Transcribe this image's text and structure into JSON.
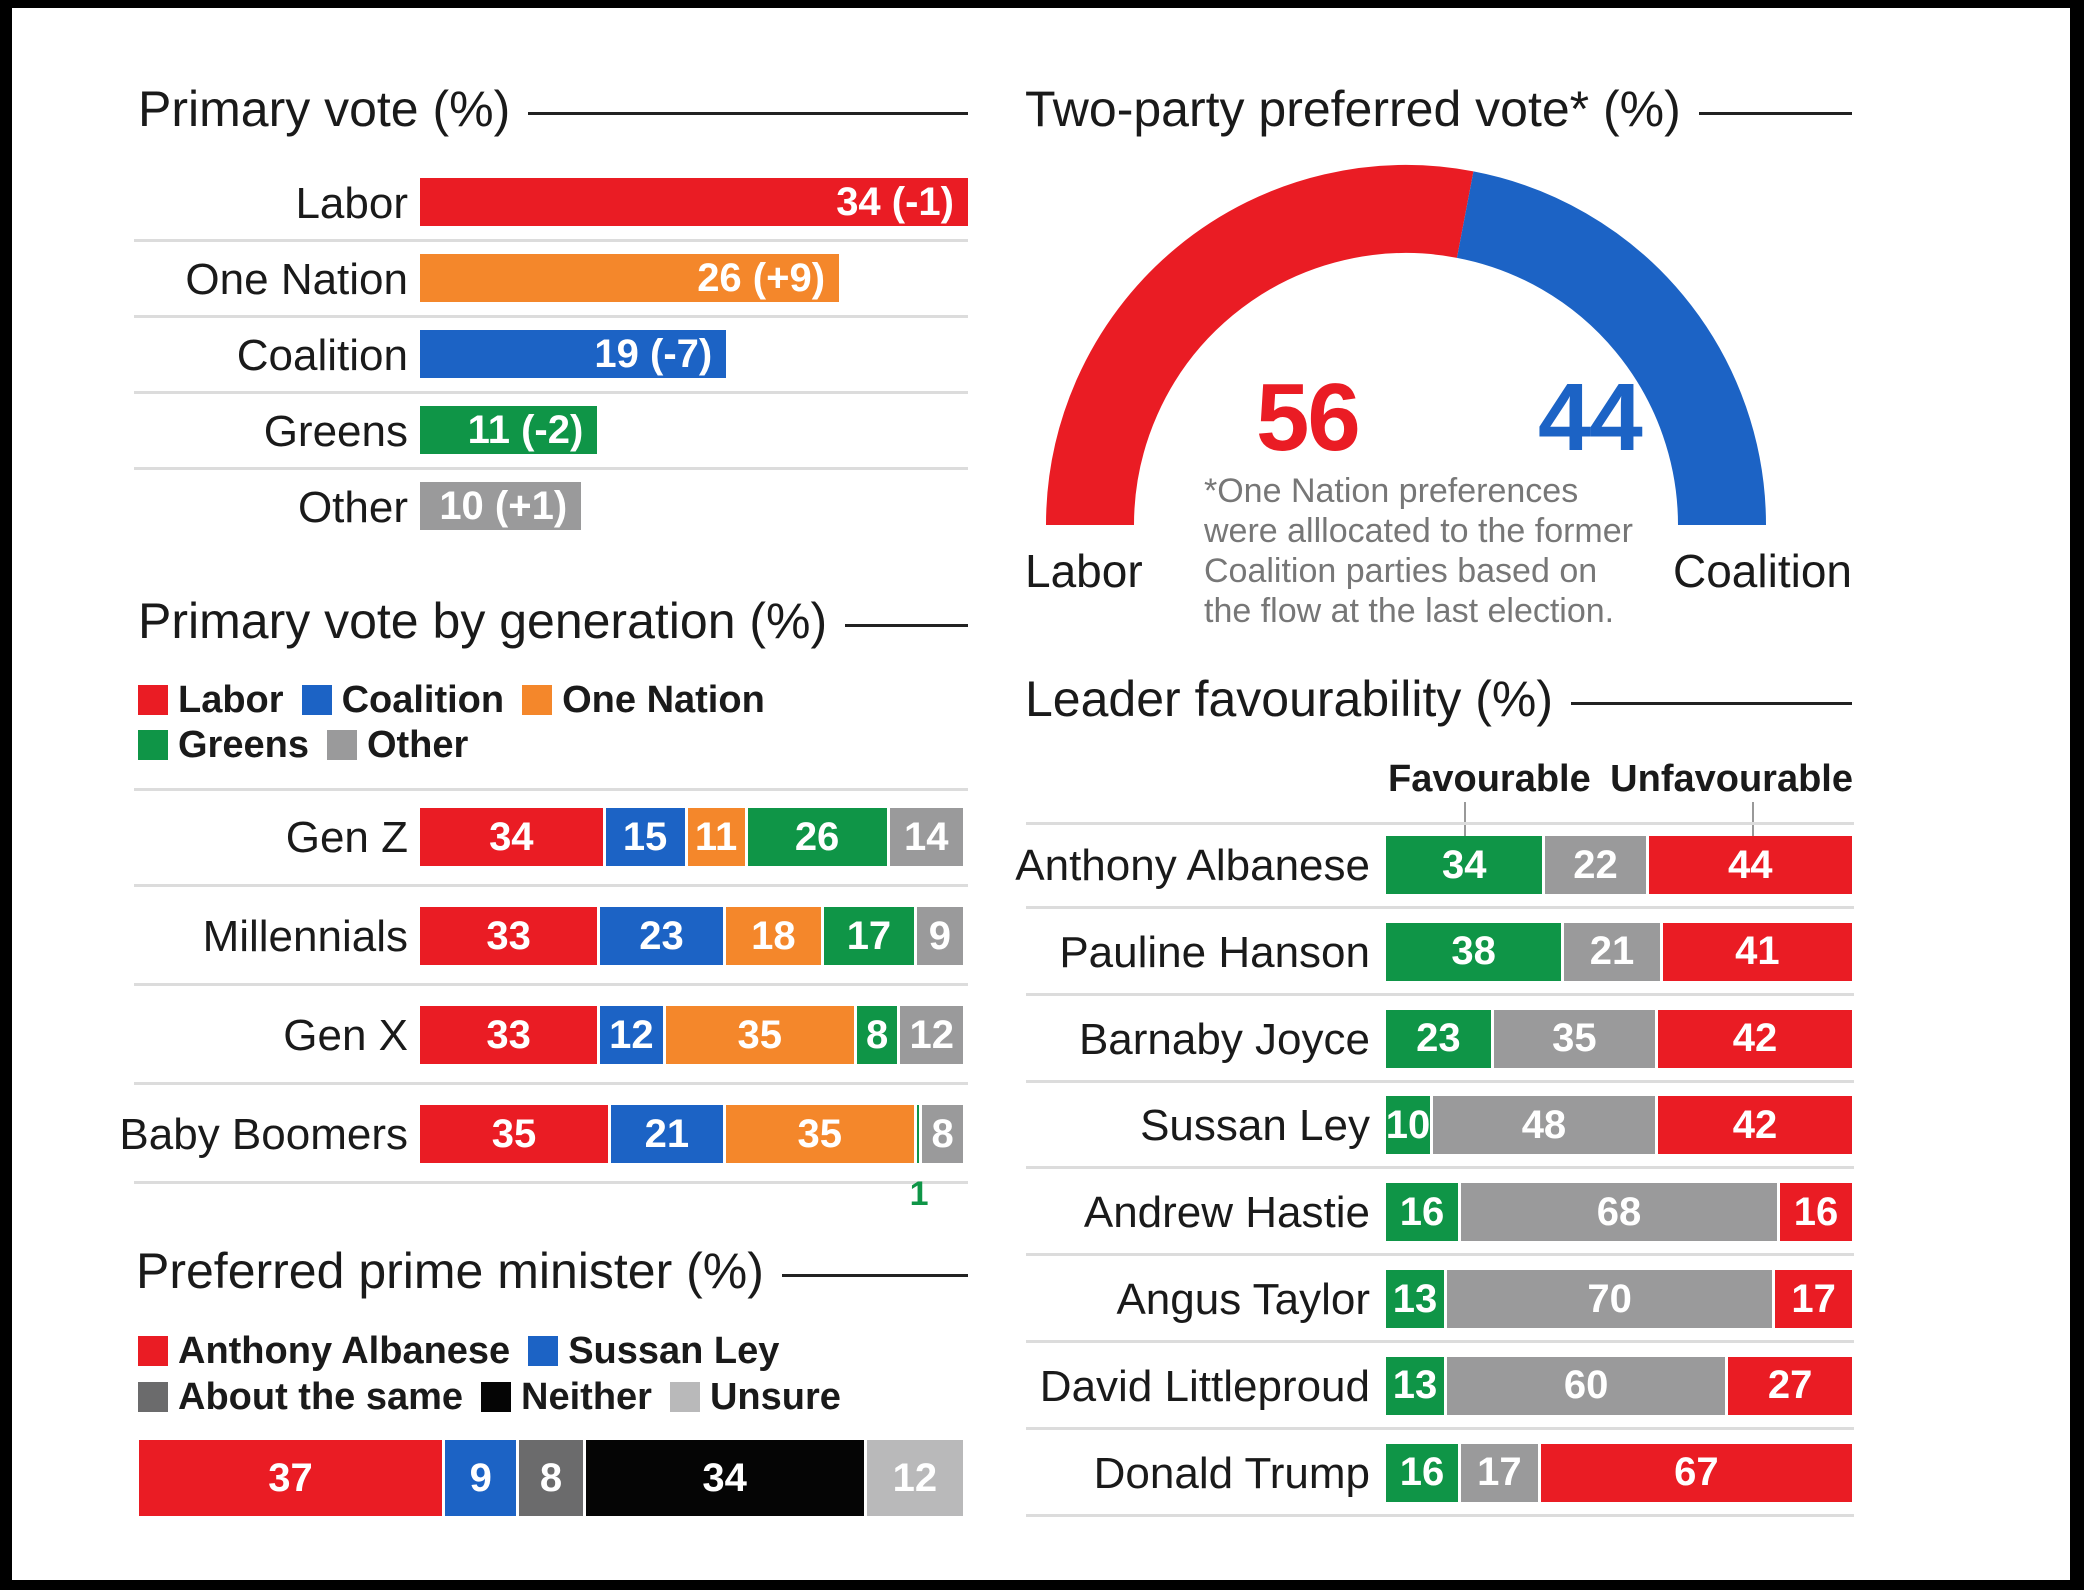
{
  "colors": {
    "labor": "#ea1c24",
    "coalition": "#1c63c5",
    "one_nation": "#f4872b",
    "greens": "#0f9547",
    "other": "#9a9a9b",
    "same": "#6b6b6c",
    "neither": "#050505",
    "unsure": "#b9b9ba",
    "favourable": "#0f9547",
    "neutral": "#9a9a9b",
    "unfavourable": "#ea1c24"
  },
  "chart_data": [
    {
      "type": "bar",
      "title": "Primary vote (%)",
      "categories": [
        "Labor",
        "One Nation",
        "Coalition",
        "Greens",
        "Other"
      ],
      "values": [
        34,
        26,
        19,
        11,
        10
      ],
      "labels": [
        "34 (-1)",
        "26 (+9)",
        "19 (-7)",
        "11 (-2)",
        "10 (+1)"
      ],
      "color_keys": [
        "labor",
        "one_nation",
        "coalition",
        "greens",
        "other"
      ]
    },
    {
      "type": "pie",
      "title": "Two-party preferred vote* (%)",
      "categories": [
        "Labor",
        "Coalition"
      ],
      "values": [
        56,
        44
      ],
      "color_keys": [
        "labor",
        "coalition"
      ],
      "note": [
        "*One Nation preferences",
        "were alllocated to the former",
        "Coalition parties based on",
        "the flow at the last election."
      ]
    },
    {
      "type": "bar",
      "title": "Primary vote by generation (%)",
      "legend": [
        {
          "name": "Labor",
          "color_key": "labor"
        },
        {
          "name": "Coalition",
          "color_key": "coalition"
        },
        {
          "name": "One Nation",
          "color_key": "one_nation"
        },
        {
          "name": "Greens",
          "color_key": "greens"
        },
        {
          "name": "Other",
          "color_key": "other"
        }
      ],
      "categories": [
        "Gen Z",
        "Millennials",
        "Gen X",
        "Baby Boomers"
      ],
      "series": [
        {
          "name": "Labor",
          "color_key": "labor",
          "values": [
            34,
            33,
            33,
            35
          ]
        },
        {
          "name": "Coalition",
          "color_key": "coalition",
          "values": [
            15,
            23,
            12,
            21
          ]
        },
        {
          "name": "One Nation",
          "color_key": "one_nation",
          "values": [
            11,
            18,
            35,
            35
          ]
        },
        {
          "name": "Greens",
          "color_key": "greens",
          "values": [
            26,
            17,
            8,
            1
          ]
        },
        {
          "name": "Other",
          "color_key": "other",
          "values": [
            14,
            9,
            12,
            8
          ]
        }
      ],
      "outside_label": {
        "row": 3,
        "series": 3,
        "text": "1"
      }
    },
    {
      "type": "bar",
      "title": "Preferred prime minister (%)",
      "legend": [
        {
          "name": "Anthony Albanese",
          "color_key": "labor"
        },
        {
          "name": "Sussan Ley",
          "color_key": "coalition"
        },
        {
          "name": "About the same",
          "color_key": "same"
        },
        {
          "name": "Neither",
          "color_key": "neither"
        },
        {
          "name": "Unsure",
          "color_key": "unsure"
        }
      ],
      "values": [
        37,
        9,
        8,
        34,
        12
      ],
      "color_keys": [
        "labor",
        "coalition",
        "same",
        "neither",
        "unsure"
      ]
    },
    {
      "type": "bar",
      "title": "Leader favourability (%)",
      "column_headers": [
        "Favourable",
        "Unfavourable"
      ],
      "categories": [
        "Anthony Albanese",
        "Pauline Hanson",
        "Barnaby Joyce",
        "Sussan Ley",
        "Andrew Hastie",
        "Angus Taylor",
        "David Littleproud",
        "Donald Trump"
      ],
      "series": [
        {
          "name": "Favourable",
          "color_key": "favourable",
          "values": [
            34,
            38,
            23,
            10,
            16,
            13,
            13,
            16
          ]
        },
        {
          "color_key": "neutral",
          "values": [
            22,
            21,
            35,
            48,
            68,
            70,
            60,
            17
          ]
        },
        {
          "name": "Unfavourable",
          "color_key": "unfavourable",
          "values": [
            44,
            41,
            42,
            42,
            16,
            17,
            27,
            67
          ]
        }
      ]
    }
  ]
}
